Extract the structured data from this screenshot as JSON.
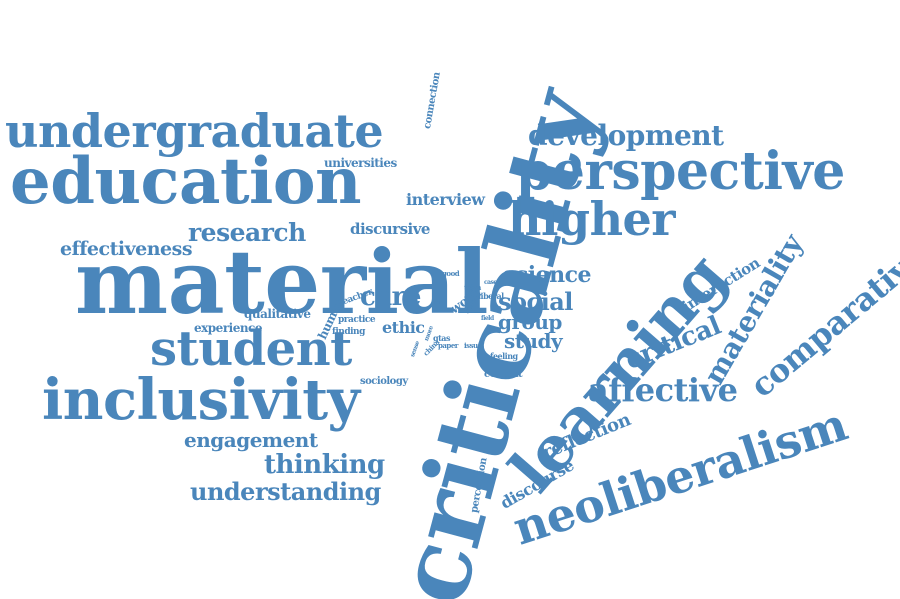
{
  "word_cloud": {
    "color": "#4a86bb",
    "words": [
      {
        "id": "criticality",
        "text": "criticality"
      },
      {
        "id": "material",
        "text": "material"
      },
      {
        "id": "learning",
        "text": "learning"
      },
      {
        "id": "education",
        "text": "education"
      },
      {
        "id": "perspective",
        "text": "perspective"
      },
      {
        "id": "undergraduate",
        "text": "undergraduate"
      },
      {
        "id": "inclusivity",
        "text": "inclusivity"
      },
      {
        "id": "neoliberalism",
        "text": "neoliberalism"
      },
      {
        "id": "student",
        "text": "student"
      },
      {
        "id": "higher",
        "text": "higher"
      },
      {
        "id": "comparative",
        "text": "comparative"
      },
      {
        "id": "materiality",
        "text": "materiality"
      },
      {
        "id": "development",
        "text": "development"
      },
      {
        "id": "affective",
        "text": "affective"
      },
      {
        "id": "research",
        "text": "research"
      },
      {
        "id": "critical",
        "text": "critical"
      },
      {
        "id": "science",
        "text": "science"
      },
      {
        "id": "social",
        "text": "social"
      },
      {
        "id": "thinking",
        "text": "thinking"
      },
      {
        "id": "understanding",
        "text": "understanding"
      },
      {
        "id": "engagement",
        "text": "engagement"
      },
      {
        "id": "effectiveness",
        "text": "effectiveness"
      },
      {
        "id": "care",
        "text": "care"
      },
      {
        "id": "group",
        "text": "group"
      },
      {
        "id": "study",
        "text": "study"
      },
      {
        "id": "interview",
        "text": "interview"
      },
      {
        "id": "reflection",
        "text": "reflection"
      },
      {
        "id": "discourse",
        "text": "discourse"
      },
      {
        "id": "interaction",
        "text": "interaction"
      },
      {
        "id": "discursive",
        "text": "discursive"
      },
      {
        "id": "universities",
        "text": "universities"
      },
      {
        "id": "experience",
        "text": "experience"
      },
      {
        "id": "qualitative",
        "text": "qualitative"
      },
      {
        "id": "ethic",
        "text": "ethic"
      },
      {
        "id": "human",
        "text": "human"
      },
      {
        "id": "work",
        "text": "work"
      },
      {
        "id": "sociology",
        "text": "sociology"
      },
      {
        "id": "context",
        "text": "context"
      },
      {
        "id": "connection",
        "text": "connection"
      },
      {
        "id": "perception",
        "text": "perception"
      },
      {
        "id": "teacher",
        "text": "teacher"
      },
      {
        "id": "finding",
        "text": "finding"
      },
      {
        "id": "practice",
        "text": "practice"
      },
      {
        "id": "feeling",
        "text": "feeling"
      },
      {
        "id": "role",
        "text": "role"
      },
      {
        "id": "len",
        "text": "len"
      },
      {
        "id": "good",
        "text": "good"
      },
      {
        "id": "term",
        "text": "term"
      },
      {
        "id": "year",
        "text": "year"
      },
      {
        "id": "liberal",
        "text": "liberal"
      },
      {
        "id": "case",
        "text": "case"
      },
      {
        "id": "field",
        "text": "field"
      },
      {
        "id": "gtas",
        "text": "gtas"
      },
      {
        "id": "sense",
        "text": "sense"
      },
      {
        "id": "china",
        "text": "china"
      },
      {
        "id": "paper",
        "text": "paper"
      },
      {
        "id": "issue",
        "text": "issue"
      },
      {
        "id": "more",
        "text": "more"
      }
    ]
  }
}
